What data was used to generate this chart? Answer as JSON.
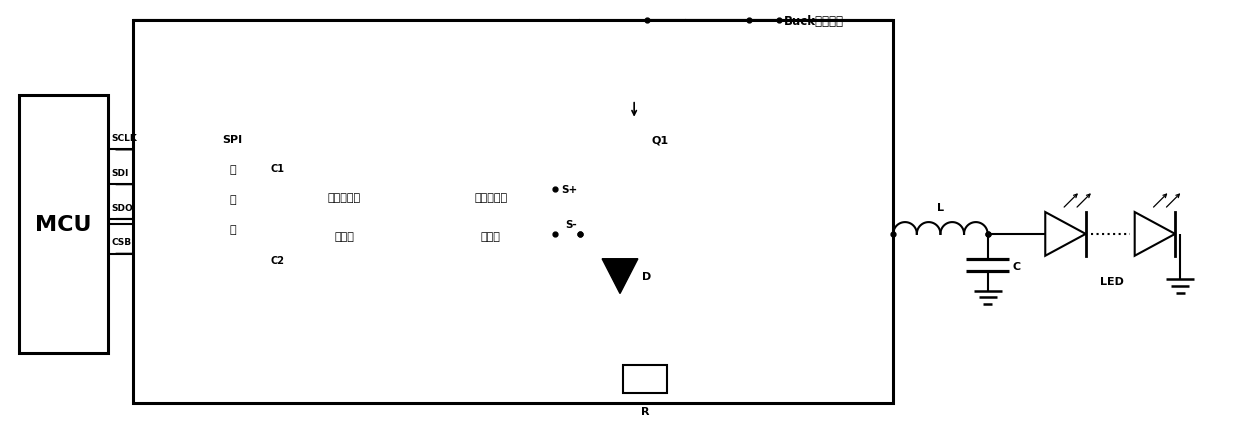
{
  "fig_width": 12.4,
  "fig_height": 4.35,
  "dpi": 100,
  "bg_color": "#ffffff",
  "lw": 1.5,
  "lw_thick": 2.2,
  "mcu_label": "MCU",
  "spi_labels": [
    "SPI",
    "寄",
    "存",
    "器"
  ],
  "peak_label1": "峰峰电流控",
  "peak_label2": "制电路",
  "sample_label1": "输出电流采",
  "sample_label2": "样电路",
  "buck_label": "Buck输入电压",
  "q1_label": "Q1",
  "s_plus": "S+",
  "s_minus": "S-",
  "d_label": "D",
  "r_label": "R",
  "l_label": "L",
  "c_label": "C",
  "led_label": "LED",
  "c1_label": "C1",
  "c2_label": "C2",
  "signals": [
    "SCLK",
    "SDI",
    "SDO",
    "CSB"
  ]
}
